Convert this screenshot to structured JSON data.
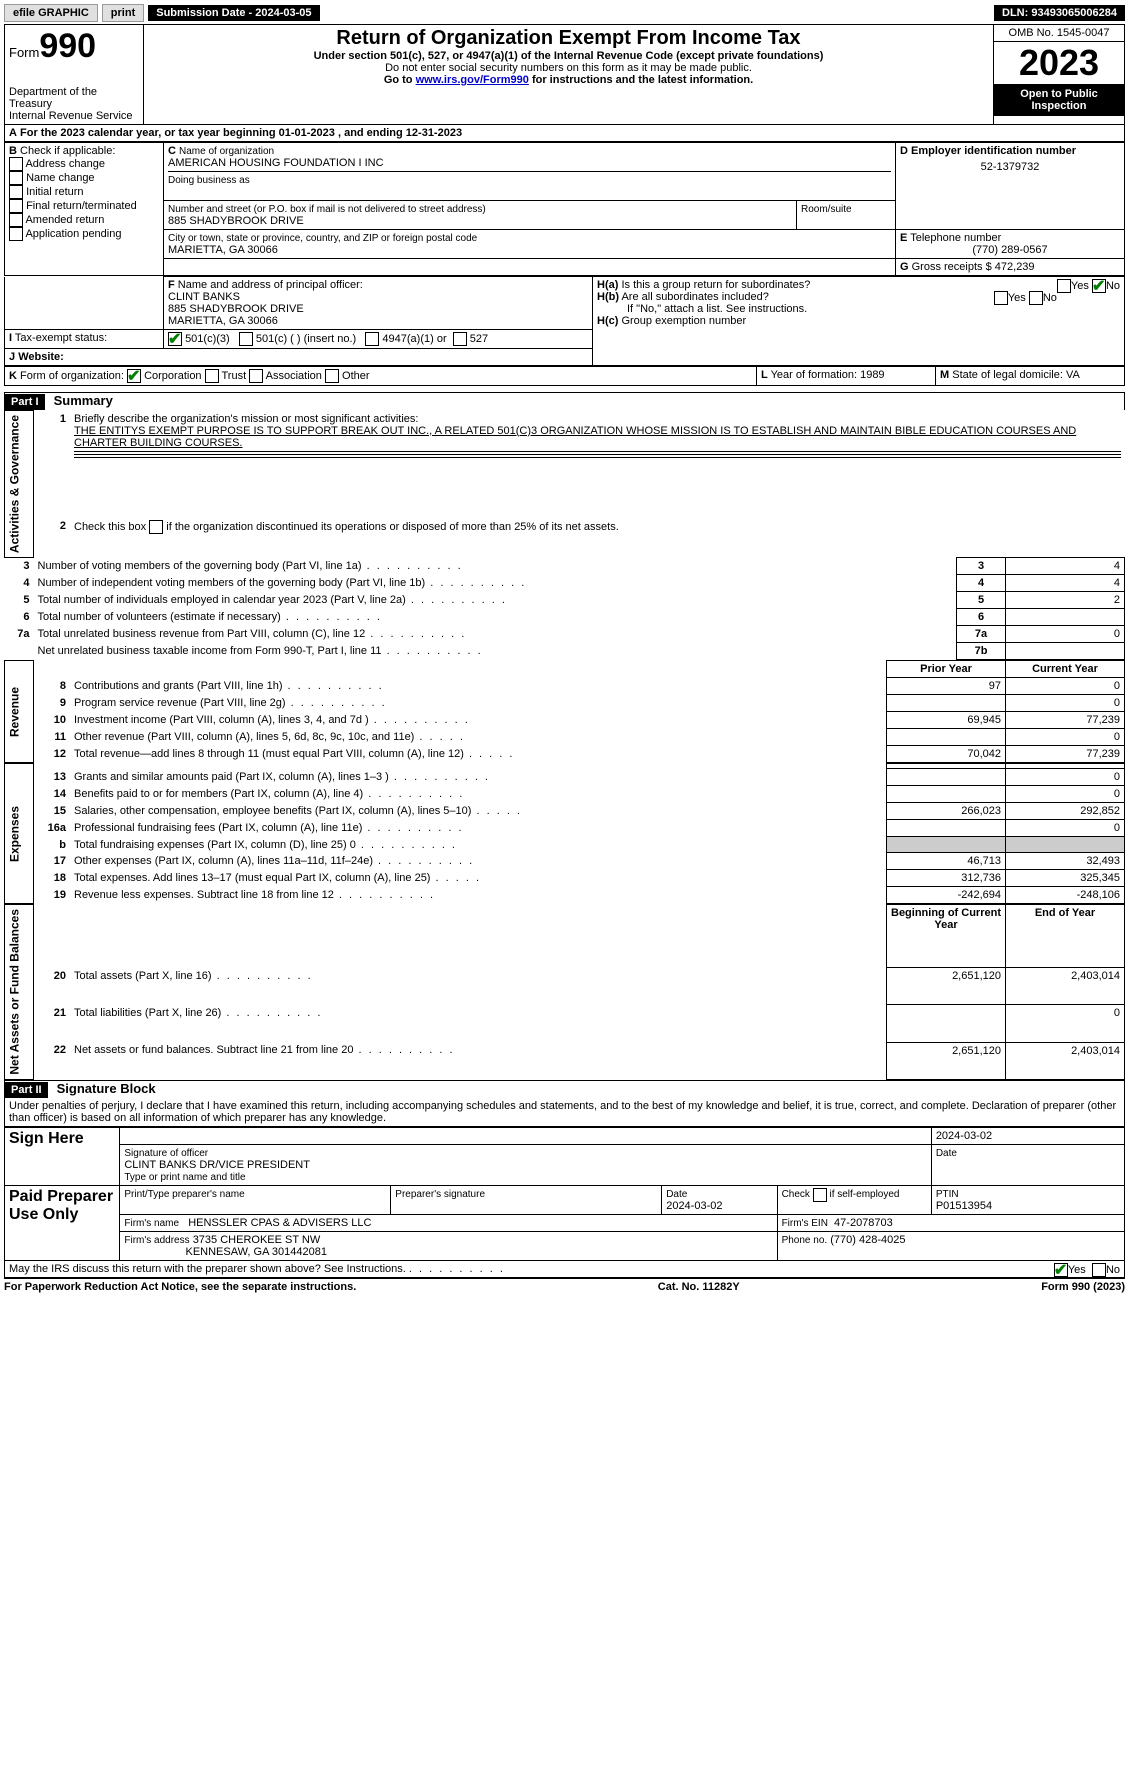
{
  "topbar": {
    "efile": "efile GRAPHIC",
    "print": "print",
    "submission": "Submission Date - 2024-03-05",
    "dln": "DLN: 93493065006284"
  },
  "header": {
    "form_label": "Form",
    "form_number": "990",
    "title": "Return of Organization Exempt From Income Tax",
    "subtitle1": "Under section 501(c), 527, or 4947(a)(1) of the Internal Revenue Code (except private foundations)",
    "subtitle2": "Do not enter social security numbers on this form as it may be made public.",
    "subtitle3_pre": "Go to ",
    "subtitle3_link": "www.irs.gov/Form990",
    "subtitle3_post": " for instructions and the latest information.",
    "dept": "Department of the Treasury\nInternal Revenue Service",
    "omb": "OMB No. 1545-0047",
    "year": "2023",
    "open": "Open to Public Inspection"
  },
  "boxA": {
    "text_pre": "For the 2023 calendar year, or tax year beginning ",
    "begin": "01-01-2023",
    "mid": " , and ending ",
    "end": "12-31-2023"
  },
  "boxB": {
    "label": "Check if applicable:",
    "items": [
      "Address change",
      "Name change",
      "Initial return",
      "Final return/terminated",
      "Amended return",
      "Application pending"
    ]
  },
  "boxC": {
    "name_label": "Name of organization",
    "name": "AMERICAN HOUSING FOUNDATION I INC",
    "dba_label": "Doing business as",
    "street_label": "Number and street (or P.O. box if mail is not delivered to street address)",
    "street": "885 SHADYBROOK DRIVE",
    "room_label": "Room/suite",
    "city_label": "City or town, state or province, country, and ZIP or foreign postal code",
    "city": "MARIETTA, GA  30066"
  },
  "boxD": {
    "label": "Employer identification number",
    "value": "52-1379732"
  },
  "boxE": {
    "label": "Telephone number",
    "value": "(770) 289-0567"
  },
  "boxG": {
    "label": "Gross receipts $",
    "value": "472,239"
  },
  "boxF": {
    "label": "Name and address of principal officer:",
    "name": "CLINT BANKS",
    "street": "885 SHADYBROOK DRIVE",
    "city": "MARIETTA, GA  30066"
  },
  "boxH": {
    "a": "Is this a group return for subordinates?",
    "b": "Are all subordinates included?",
    "b_note": "If \"No,\" attach a list. See instructions.",
    "c": "Group exemption number",
    "yes": "Yes",
    "no": "No"
  },
  "boxI": {
    "label": "Tax-exempt status:",
    "opt1": "501(c)(3)",
    "opt2": "501(c) (  ) (insert no.)",
    "opt3": "4947(a)(1) or",
    "opt4": "527"
  },
  "boxJ": {
    "label": "Website:"
  },
  "boxK": {
    "label": "Form of organization:",
    "opts": [
      "Corporation",
      "Trust",
      "Association",
      "Other"
    ]
  },
  "boxL": {
    "label": "Year of formation:",
    "value": "1989"
  },
  "boxM": {
    "label": "State of legal domicile:",
    "value": "VA"
  },
  "part1": {
    "header": "Part I",
    "title": "Summary",
    "side_labels": [
      "Activities & Governance",
      "Revenue",
      "Expenses",
      "Net Assets or\nFund Balances"
    ],
    "line1_label": "Briefly describe the organization's mission or most significant activities:",
    "mission": "THE ENTITYS EXEMPT PURPOSE IS TO SUPPORT BREAK OUT INC., A RELATED 501(C)3 ORGANIZATION WHOSE MISSION IS TO ESTABLISH AND MAINTAIN BIBLE EDUCATION COURSES AND CHARTER BUILDING COURSES.",
    "line2": "Check this box      if the organization discontinued its operations or disposed of more than 25% of its net assets.",
    "lines_gov": [
      {
        "n": "3",
        "t": "Number of voting members of the governing body (Part VI, line 1a)",
        "b": "3",
        "v": "4"
      },
      {
        "n": "4",
        "t": "Number of independent voting members of the governing body (Part VI, line 1b)",
        "b": "4",
        "v": "4"
      },
      {
        "n": "5",
        "t": "Total number of individuals employed in calendar year 2023 (Part V, line 2a)",
        "b": "5",
        "v": "2"
      },
      {
        "n": "6",
        "t": "Total number of volunteers (estimate if necessary)",
        "b": "6",
        "v": ""
      },
      {
        "n": "7a",
        "t": "Total unrelated business revenue from Part VIII, column (C), line 12",
        "b": "7a",
        "v": "0"
      },
      {
        "n": "",
        "t": "Net unrelated business taxable income from Form 990-T, Part I, line 11",
        "b": "7b",
        "v": ""
      }
    ],
    "col_prior": "Prior Year",
    "col_current": "Current Year",
    "rev": [
      {
        "n": "8",
        "t": "Contributions and grants (Part VIII, line 1h)",
        "p": "97",
        "c": "0"
      },
      {
        "n": "9",
        "t": "Program service revenue (Part VIII, line 2g)",
        "p": "",
        "c": "0"
      },
      {
        "n": "10",
        "t": "Investment income (Part VIII, column (A), lines 3, 4, and 7d )",
        "p": "69,945",
        "c": "77,239"
      },
      {
        "n": "11",
        "t": "Other revenue (Part VIII, column (A), lines 5, 6d, 8c, 9c, 10c, and 11e)",
        "p": "",
        "c": "0"
      },
      {
        "n": "12",
        "t": "Total revenue—add lines 8 through 11 (must equal Part VIII, column (A), line 12)",
        "p": "70,042",
        "c": "77,239"
      }
    ],
    "exp": [
      {
        "n": "13",
        "t": "Grants and similar amounts paid (Part IX, column (A), lines 1–3 )",
        "p": "",
        "c": "0"
      },
      {
        "n": "14",
        "t": "Benefits paid to or for members (Part IX, column (A), line 4)",
        "p": "",
        "c": "0"
      },
      {
        "n": "15",
        "t": "Salaries, other compensation, employee benefits (Part IX, column (A), lines 5–10)",
        "p": "266,023",
        "c": "292,852"
      },
      {
        "n": "16a",
        "t": "Professional fundraising fees (Part IX, column (A), line 11e)",
        "p": "",
        "c": "0"
      },
      {
        "n": "b",
        "t": "Total fundraising expenses (Part IX, column (D), line 25) 0",
        "p": "SHADE",
        "c": "SHADE"
      },
      {
        "n": "17",
        "t": "Other expenses (Part IX, column (A), lines 11a–11d, 11f–24e)",
        "p": "46,713",
        "c": "32,493"
      },
      {
        "n": "18",
        "t": "Total expenses. Add lines 13–17 (must equal Part IX, column (A), line 25)",
        "p": "312,736",
        "c": "325,345"
      },
      {
        "n": "19",
        "t": "Revenue less expenses. Subtract line 18 from line 12",
        "p": "-242,694",
        "c": "-248,106"
      }
    ],
    "col_begin": "Beginning of Current Year",
    "col_end": "End of Year",
    "net": [
      {
        "n": "20",
        "t": "Total assets (Part X, line 16)",
        "p": "2,651,120",
        "c": "2,403,014"
      },
      {
        "n": "21",
        "t": "Total liabilities (Part X, line 26)",
        "p": "",
        "c": "0"
      },
      {
        "n": "22",
        "t": "Net assets or fund balances. Subtract line 21 from line 20",
        "p": "2,651,120",
        "c": "2,403,014"
      }
    ]
  },
  "part2": {
    "header": "Part II",
    "title": "Signature Block",
    "declaration": "Under penalties of perjury, I declare that I have examined this return, including accompanying schedules and statements, and to the best of my knowledge and belief, it is true, correct, and complete. Declaration of preparer (other than officer) is based on all information of which preparer has any knowledge.",
    "sign_here": "Sign Here",
    "sig_officer": "Signature of officer",
    "sig_date": "2024-03-02",
    "officer_name": "CLINT BANKS  DR/VICE PRESIDENT",
    "type_name": "Type or print name and title",
    "paid": "Paid Preparer Use Only",
    "pt_name_label": "Print/Type preparer's name",
    "pt_sig_label": "Preparer's signature",
    "pt_date_label": "Date",
    "pt_date": "2024-03-02",
    "pt_check": "Check       if self-employed",
    "ptin_label": "PTIN",
    "ptin": "P01513954",
    "firm_name_label": "Firm's name",
    "firm_name": "HENSSLER CPAS & ADVISERS LLC",
    "firm_ein_label": "Firm's EIN",
    "firm_ein": "47-2078703",
    "firm_addr_label": "Firm's address",
    "firm_addr1": "3735 CHEROKEE ST NW",
    "firm_addr2": "KENNESAW, GA  301442081",
    "phone_label": "Phone no.",
    "phone": "(770) 428-4025",
    "discuss": "May the IRS discuss this return with the preparer shown above? See Instructions.",
    "yes": "Yes",
    "no": "No"
  },
  "footer": {
    "left": "For Paperwork Reduction Act Notice, see the separate instructions.",
    "mid": "Cat. No. 11282Y",
    "right": "Form 990 (2023)"
  }
}
